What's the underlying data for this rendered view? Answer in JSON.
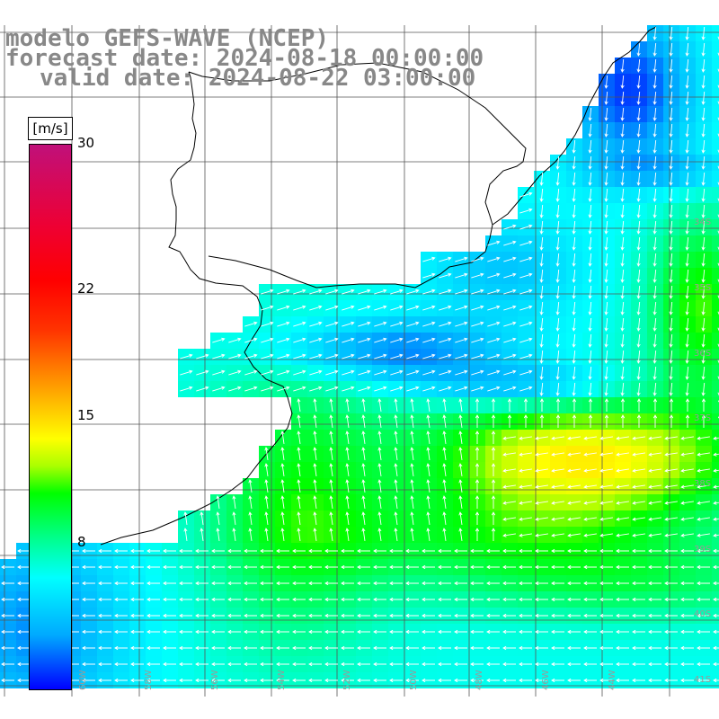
{
  "title": {
    "model": "modelo GEFS-WAVE (NCEP)",
    "forecast": "forecast date: 2024-08-18 00:00:00",
    "valid": "valid date: 2024-08-22 03:00:00"
  },
  "colorbar": {
    "unit": "[m/s]",
    "min": 0,
    "max": 30,
    "ticks": [
      {
        "label": "30",
        "value": 30
      },
      {
        "label": "22",
        "value": 22
      },
      {
        "label": "15",
        "value": 15
      },
      {
        "label": "8",
        "value": 8
      }
    ]
  },
  "map": {
    "lon_range": [
      -61,
      -40
    ],
    "lat_range": [
      -42,
      -21
    ],
    "grid_step": 2,
    "lat_labels": [
      "34S",
      "35S",
      "36S",
      "37S",
      "38S",
      "39S",
      "40S",
      "41S"
    ],
    "lon_labels": [
      "60W",
      "58W",
      "56W",
      "54W",
      "52W",
      "50W",
      "48W",
      "46W",
      "44W"
    ],
    "colors": {
      "grid": "#555555",
      "coast": "#000000",
      "label": "#999999",
      "arrow": "#ffffff"
    }
  }
}
